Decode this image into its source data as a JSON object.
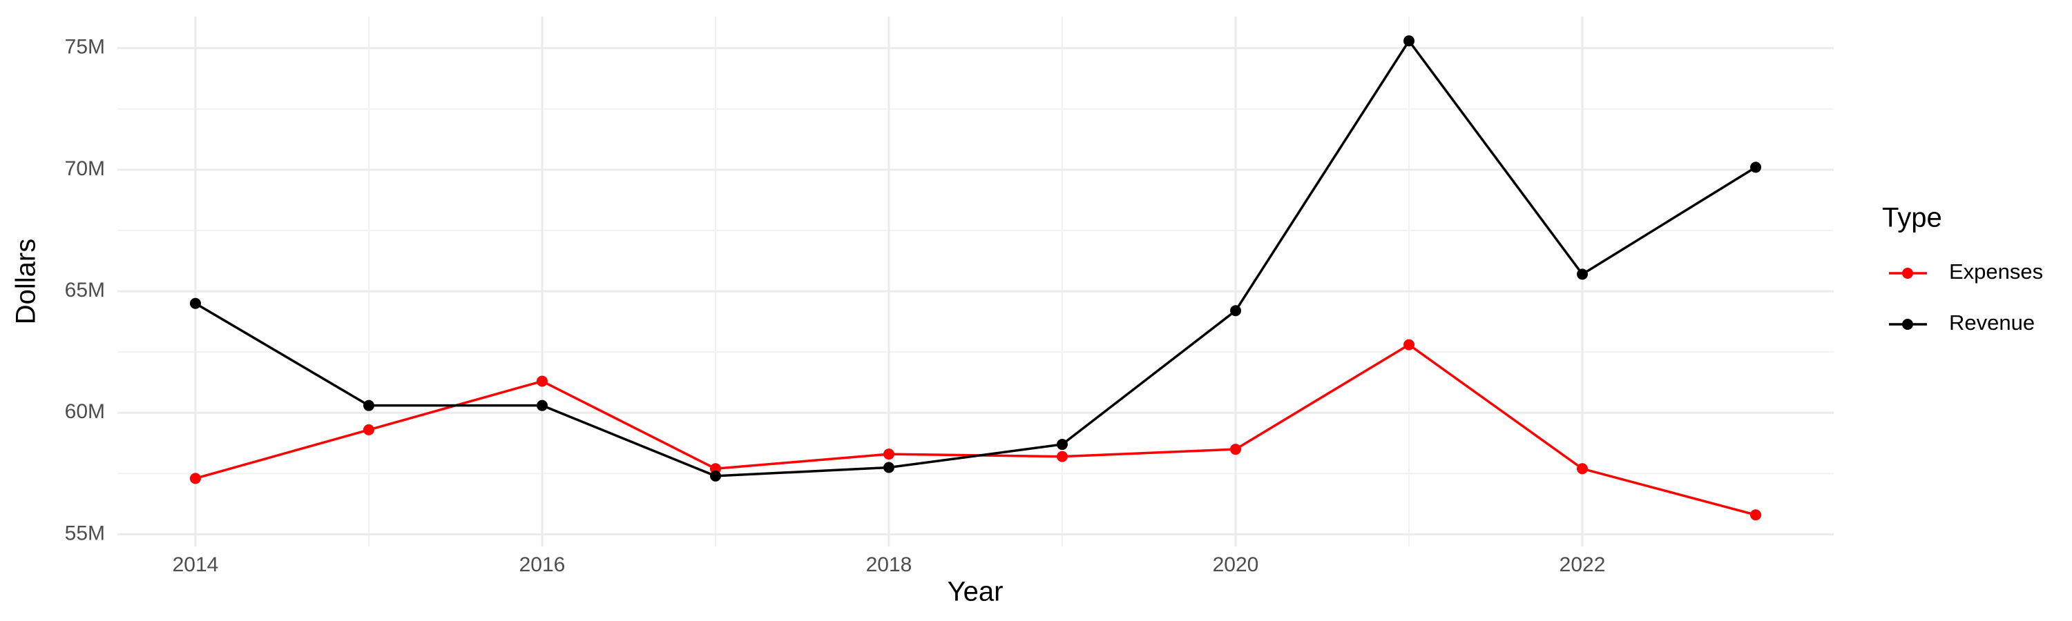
{
  "chart_data": {
    "type": "line",
    "x_label": "Year",
    "y_label": "Dollars",
    "legend_title": "Type",
    "x": [
      2014,
      2015,
      2016,
      2017,
      2018,
      2019,
      2020,
      2021,
      2022,
      2023
    ],
    "series": [
      {
        "name": "Expenses",
        "color": "#ff0000",
        "values": [
          57300000,
          59300000,
          61300000,
          57700000,
          58300000,
          58200000,
          58500000,
          62800000,
          57700000,
          55800000
        ]
      },
      {
        "name": "Revenue",
        "color": "#000000",
        "values": [
          64500000,
          60300000,
          60300000,
          57400000,
          57750000,
          58700000,
          64200000,
          75300000,
          65700000,
          70100000
        ]
      }
    ],
    "xlim": [
      2013.55,
      2023.45
    ],
    "xticks": [
      2014,
      2016,
      2018,
      2020,
      2022
    ],
    "ylim": [
      54500000,
      76300000
    ],
    "yticks": [
      {
        "value": 55000000,
        "label": "55M"
      },
      {
        "value": 60000000,
        "label": "60M"
      },
      {
        "value": 65000000,
        "label": "65M"
      },
      {
        "value": 70000000,
        "label": "70M"
      },
      {
        "value": 75000000,
        "label": "75M"
      }
    ],
    "grid": true,
    "legend": "right"
  }
}
